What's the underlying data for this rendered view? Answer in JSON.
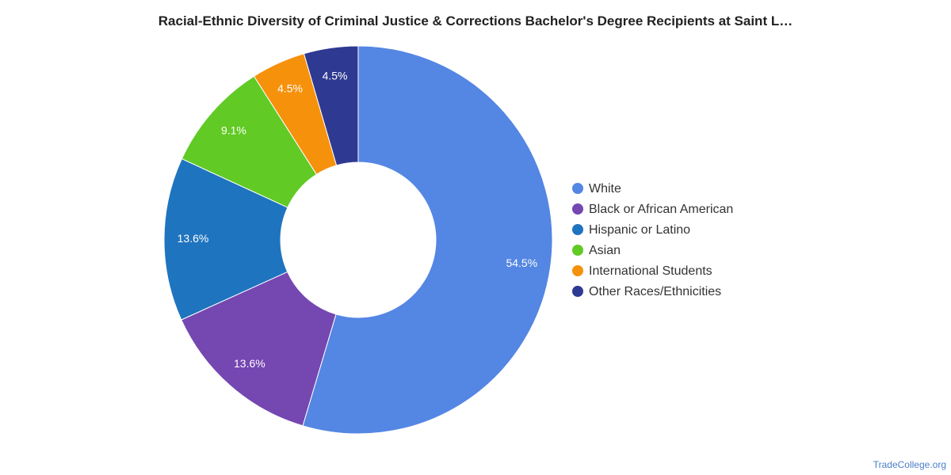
{
  "chart_data": {
    "type": "pie",
    "donut": true,
    "title": "Racial-Ethnic Diversity of Criminal Justice & Corrections Bachelor's Degree Recipients at Saint L…",
    "legend_position": "right",
    "slices": [
      {
        "name": "White",
        "value": 54.5,
        "label": "54.5%",
        "color": "#5486e3"
      },
      {
        "name": "Black or African American",
        "value": 13.6,
        "label": "13.6%",
        "color": "#7547b1"
      },
      {
        "name": "Hispanic or Latino",
        "value": 13.6,
        "label": "13.6%",
        "color": "#1f74bf"
      },
      {
        "name": "Asian",
        "value": 9.1,
        "label": "9.1%",
        "color": "#61ca25"
      },
      {
        "name": "International Students",
        "value": 4.5,
        "label": "4.5%",
        "color": "#f6910c"
      },
      {
        "name": "Other Races/Ethnicities",
        "value": 4.5,
        "label": "4.5%",
        "color": "#2e3a91"
      }
    ]
  },
  "source": "TradeCollege.org"
}
